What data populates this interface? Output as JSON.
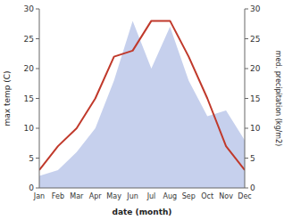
{
  "chart_data": {
    "type": "line",
    "xlabel": "date (month)",
    "ylabel": "max temp (C)",
    "y2label": "med. precipitation (kg/m2)",
    "categories": [
      "Jan",
      "Feb",
      "Mar",
      "Apr",
      "May",
      "Jun",
      "Jul",
      "Aug",
      "Sep",
      "Oct",
      "Nov",
      "Dec"
    ],
    "series": [
      {
        "type": "area",
        "axis": "y2",
        "color": "#b8c4e8",
        "values": [
          2,
          3,
          6,
          10,
          18,
          28,
          20,
          27,
          18,
          12,
          13,
          8
        ]
      },
      {
        "type": "line",
        "axis": "y",
        "color": "#c0392b",
        "values": [
          3,
          7,
          10,
          15,
          22,
          23,
          28,
          28,
          22,
          15,
          7,
          3
        ]
      }
    ],
    "ylim": [
      0,
      30
    ],
    "yticks": [
      0,
      5,
      10,
      15,
      20,
      25,
      30
    ],
    "y2lim": [
      0,
      30
    ],
    "y2ticks": [
      0,
      5,
      10,
      15,
      20,
      25,
      30
    ],
    "grid": false
  }
}
